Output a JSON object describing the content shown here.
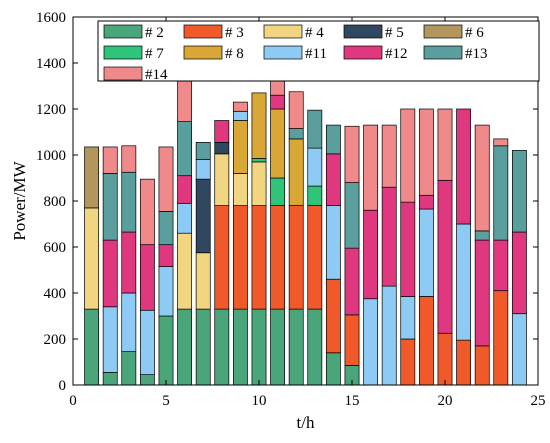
{
  "chart_data": {
    "type": "bar",
    "stacked": true,
    "xlabel": "t/h",
    "ylabel": "Power/MW",
    "xlim": [
      0,
      25
    ],
    "ylim": [
      0,
      1600
    ],
    "xticks": [
      0,
      5,
      10,
      15,
      20,
      25
    ],
    "yticks": [
      0,
      200,
      400,
      600,
      800,
      1000,
      1200,
      1400,
      1600
    ],
    "legend_position": "top-center",
    "x": [
      1,
      2,
      3,
      4,
      5,
      6,
      7,
      8,
      9,
      10,
      11,
      12,
      13,
      14,
      15,
      16,
      17,
      18,
      19,
      20,
      21,
      22,
      23,
      24
    ],
    "series": [
      {
        "name": "# 2",
        "color": "#4aa57a",
        "values": [
          330,
          55,
          145,
          45,
          300,
          330,
          330,
          330,
          330,
          330,
          330,
          330,
          330,
          140,
          85,
          0,
          0,
          0,
          0,
          0,
          0,
          0,
          0,
          0
        ]
      },
      {
        "name": "# 3",
        "color": "#f05a2a",
        "values": [
          0,
          0,
          0,
          0,
          0,
          0,
          0,
          450,
          450,
          450,
          450,
          450,
          450,
          320,
          220,
          0,
          0,
          200,
          385,
          225,
          195,
          170,
          410,
          0
        ]
      },
      {
        "name": "# 4",
        "color": "#f2d580",
        "values": [
          440,
          0,
          0,
          0,
          0,
          330,
          245,
          225,
          140,
          190,
          0,
          0,
          0,
          0,
          0,
          0,
          0,
          0,
          0,
          0,
          0,
          0,
          0,
          0
        ]
      },
      {
        "name": "# 5",
        "color": "#2f4860",
        "values": [
          0,
          0,
          0,
          0,
          0,
          0,
          320,
          50,
          0,
          0,
          0,
          0,
          0,
          0,
          0,
          0,
          0,
          0,
          0,
          0,
          0,
          0,
          0,
          0
        ]
      },
      {
        "name": "# 6",
        "color": "#b3965b",
        "values": [
          265,
          0,
          0,
          0,
          0,
          0,
          0,
          0,
          0,
          0,
          0,
          0,
          0,
          0,
          0,
          0,
          0,
          0,
          0,
          0,
          0,
          0,
          0,
          0
        ]
      },
      {
        "name": "# 7",
        "color": "#2fc47a",
        "values": [
          0,
          0,
          0,
          0,
          0,
          0,
          0,
          0,
          0,
          15,
          120,
          0,
          85,
          0,
          0,
          0,
          0,
          0,
          0,
          0,
          0,
          0,
          0,
          0
        ]
      },
      {
        "name": "# 8",
        "color": "#d9a735",
        "values": [
          0,
          0,
          0,
          0,
          0,
          0,
          0,
          0,
          230,
          285,
          300,
          290,
          0,
          0,
          0,
          0,
          0,
          0,
          0,
          0,
          0,
          0,
          0,
          0
        ]
      },
      {
        "name": "#11",
        "color": "#8ecbf4",
        "values": [
          0,
          285,
          255,
          280,
          215,
          130,
          85,
          0,
          40,
          0,
          0,
          0,
          165,
          320,
          0,
          375,
          430,
          185,
          380,
          0,
          505,
          0,
          0,
          310
        ]
      },
      {
        "name": "#12",
        "color": "#e0387f",
        "values": [
          0,
          290,
          265,
          285,
          95,
          120,
          0,
          95,
          0,
          0,
          60,
          0,
          0,
          225,
          290,
          385,
          430,
          410,
          60,
          665,
          500,
          460,
          220,
          355
        ]
      },
      {
        "name": "#13",
        "color": "#5a9e9e",
        "values": [
          0,
          290,
          260,
          0,
          145,
          235,
          75,
          0,
          0,
          0,
          0,
          45,
          165,
          125,
          285,
          0,
          0,
          0,
          0,
          0,
          0,
          40,
          410,
          355
        ]
      },
      {
        "name": "#14",
        "color": "#f08a8a",
        "values": [
          0,
          115,
          115,
          285,
          280,
          180,
          0,
          0,
          40,
          0,
          75,
          160,
          0,
          0,
          245,
          370,
          270,
          405,
          375,
          310,
          0,
          460,
          30,
          0
        ]
      }
    ]
  }
}
